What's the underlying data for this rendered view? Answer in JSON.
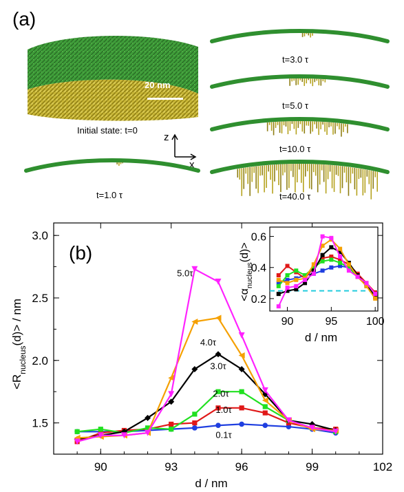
{
  "panel_a": {
    "label": "(a)",
    "scale_bar": "20 nm",
    "initial_caption": "Initial state: t=0",
    "axes": {
      "z": "z",
      "x": "x"
    },
    "snapshots": [
      {
        "label": "t=1.0 τ",
        "crystal": 0.03
      },
      {
        "label": "t=3.0 τ",
        "crystal": 0.08
      },
      {
        "label": "t=5.0 τ",
        "crystal": 0.25
      },
      {
        "label": "t=10.0 τ",
        "crystal": 0.55
      },
      {
        "label": "t=40.0 τ",
        "crystal": 0.95
      }
    ],
    "colors": {
      "amorphous": "#2f8f2f",
      "crystal": "#b5a21e"
    }
  },
  "chart_data": [
    {
      "type": "line",
      "panel_label": "(b)",
      "xlabel": "d / nm",
      "ylabel": "<R_nucleus(d)> / nm",
      "xlim": [
        88,
        102
      ],
      "ylim": [
        1.25,
        3.1
      ],
      "xticks": [
        90,
        93,
        96,
        99,
        102
      ],
      "yticks": [
        1.5,
        2.0,
        2.5,
        3.0
      ],
      "x": [
        89,
        90,
        91,
        92,
        93,
        94,
        95,
        96,
        97,
        98,
        99,
        100
      ],
      "series": [
        {
          "name": "0.1τ",
          "color": "#1f3fe0",
          "marker": "circle",
          "values": [
            1.43,
            1.43,
            1.43,
            1.44,
            1.45,
            1.46,
            1.48,
            1.49,
            1.48,
            1.47,
            1.45,
            1.42
          ]
        },
        {
          "name": "1.0τ",
          "color": "#e01818",
          "marker": "square",
          "values": [
            1.35,
            1.42,
            1.44,
            1.45,
            1.49,
            1.5,
            1.62,
            1.62,
            1.58,
            1.5,
            1.46,
            1.45
          ]
        },
        {
          "name": "2.0τ",
          "color": "#20e020",
          "marker": "square",
          "values": [
            1.43,
            1.45,
            1.42,
            1.46,
            1.45,
            1.57,
            1.75,
            1.75,
            1.63,
            1.52,
            1.46,
            1.43
          ]
        },
        {
          "name": "3.0τ",
          "color": "#000000",
          "marker": "diamond",
          "values": [
            1.37,
            1.4,
            1.43,
            1.54,
            1.67,
            1.93,
            2.05,
            1.93,
            1.73,
            1.52,
            1.49,
            1.44
          ]
        },
        {
          "name": "4.0τ",
          "color": "#f5a000",
          "marker": "triangle-left",
          "values": [
            1.38,
            1.39,
            1.4,
            1.42,
            1.86,
            2.31,
            2.34,
            2.04,
            1.68,
            1.52,
            1.45,
            1.44
          ]
        },
        {
          "name": "5.0τ",
          "color": "#ff22ff",
          "marker": "triangle-down",
          "values": [
            1.35,
            1.4,
            1.4,
            1.42,
            1.73,
            2.73,
            2.63,
            2.2,
            1.76,
            1.52,
            1.46,
            1.43
          ]
        }
      ],
      "labels": [
        "5.0τ",
        "4.0τ",
        "3.0τ",
        "2.0τ",
        "1.0τ",
        "0.1τ"
      ]
    },
    {
      "type": "line",
      "panel_label": "inset",
      "xlabel": "d / nm",
      "ylabel": "<α_nucleus(d)>",
      "xlim": [
        88,
        100.3
      ],
      "ylim": [
        0.12,
        0.66
      ],
      "xticks": [
        90,
        95,
        100
      ],
      "yticks": [
        0.2,
        0.4,
        0.6
      ],
      "reference_line": 0.25,
      "x": [
        89,
        90,
        91,
        92,
        93,
        94,
        95,
        96,
        97,
        98,
        99,
        100
      ],
      "series": [
        {
          "name": "0.1τ",
          "color": "#1f3fe0",
          "values": [
            0.3,
            0.32,
            0.33,
            0.35,
            0.36,
            0.38,
            0.4,
            0.41,
            0.4,
            0.35,
            0.28,
            0.22
          ]
        },
        {
          "name": "1.0τ",
          "color": "#e01818",
          "values": [
            0.35,
            0.41,
            0.37,
            0.33,
            0.4,
            0.46,
            0.47,
            0.45,
            0.42,
            0.36,
            0.3,
            0.24
          ]
        },
        {
          "name": "2.0τ",
          "color": "#20e020",
          "values": [
            0.28,
            0.35,
            0.38,
            0.35,
            0.4,
            0.44,
            0.45,
            0.43,
            0.4,
            0.34,
            0.29,
            0.22
          ]
        },
        {
          "name": "3.0τ",
          "color": "#000000",
          "values": [
            0.23,
            0.25,
            0.26,
            0.3,
            0.38,
            0.48,
            0.53,
            0.5,
            0.43,
            0.35,
            0.29,
            0.21
          ]
        },
        {
          "name": "4.0τ",
          "color": "#f5a000",
          "values": [
            0.32,
            0.3,
            0.32,
            0.33,
            0.42,
            0.54,
            0.58,
            0.52,
            0.42,
            0.34,
            0.28,
            0.2
          ]
        },
        {
          "name": "5.0τ",
          "color": "#ff22ff",
          "values": [
            0.15,
            0.27,
            0.28,
            0.32,
            0.36,
            0.6,
            0.59,
            0.47,
            0.38,
            0.34,
            0.3,
            0.23
          ]
        }
      ]
    }
  ]
}
